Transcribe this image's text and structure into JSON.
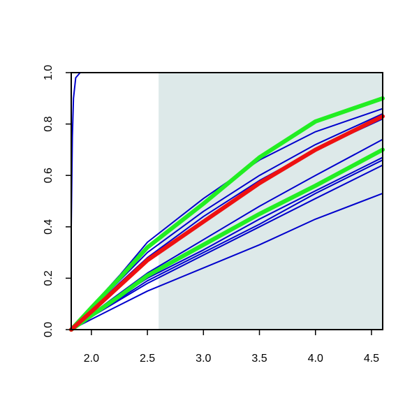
{
  "chart_data": {
    "type": "line",
    "x": [
      1.82,
      2.0,
      2.25,
      2.5,
      3.0,
      3.5,
      4.0,
      4.6
    ],
    "xlim": [
      1.82,
      4.6
    ],
    "ylim": [
      0,
      1.0
    ],
    "xticks": [
      {
        "value": 2.0,
        "label": "2.0"
      },
      {
        "value": 2.5,
        "label": "2.5"
      },
      {
        "value": 3.0,
        "label": "3.0"
      },
      {
        "value": 3.5,
        "label": "3.5"
      },
      {
        "value": 4.0,
        "label": "4.0"
      },
      {
        "value": 4.5,
        "label": "4.5"
      }
    ],
    "yticks": [
      {
        "value": 0.0,
        "label": "0.0"
      },
      {
        "value": 0.2,
        "label": "0.2"
      },
      {
        "value": 0.4,
        "label": "0.4"
      },
      {
        "value": 0.6,
        "label": "0.6"
      },
      {
        "value": 0.8,
        "label": "0.8"
      },
      {
        "value": 1.0,
        "label": "1.0"
      }
    ],
    "shade_from": 2.6,
    "shade_color": "#dde9e9",
    "series": [
      {
        "color": "#0000cc",
        "line_width": 2,
        "x": [
          1.82,
          1.83,
          1.84,
          1.86,
          1.9,
          4.6
        ],
        "values": [
          0.4,
          0.75,
          0.9,
          0.98,
          1.0,
          1.0
        ]
      },
      {
        "color": "#0000cc",
        "line_width": 2,
        "values": [
          0,
          0.09,
          0.21,
          0.34,
          0.51,
          0.66,
          0.77,
          0.86
        ]
      },
      {
        "color": "#0000cc",
        "line_width": 2,
        "values": [
          0,
          0.08,
          0.19,
          0.3,
          0.46,
          0.6,
          0.72,
          0.84
        ]
      },
      {
        "color": "#0000cc",
        "line_width": 2,
        "values": [
          0,
          0.075,
          0.18,
          0.28,
          0.44,
          0.58,
          0.7,
          0.82
        ]
      },
      {
        "color": "#0000cc",
        "line_width": 2,
        "values": [
          0,
          0.06,
          0.14,
          0.22,
          0.35,
          0.48,
          0.6,
          0.74
        ]
      },
      {
        "color": "#0000cc",
        "line_width": 2,
        "values": [
          0,
          0.055,
          0.13,
          0.2,
          0.31,
          0.43,
          0.54,
          0.67
        ]
      },
      {
        "color": "#0000cc",
        "line_width": 2,
        "values": [
          0,
          0.05,
          0.12,
          0.19,
          0.3,
          0.41,
          0.53,
          0.66
        ]
      },
      {
        "color": "#0000cc",
        "line_width": 2,
        "values": [
          0,
          0.05,
          0.115,
          0.18,
          0.29,
          0.4,
          0.51,
          0.64
        ]
      },
      {
        "color": "#0000cc",
        "line_width": 2,
        "values": [
          0,
          0.04,
          0.095,
          0.15,
          0.24,
          0.33,
          0.43,
          0.53
        ]
      },
      {
        "color": "#22ee22",
        "line_width": 6,
        "values": [
          0,
          0.085,
          0.2,
          0.32,
          0.49,
          0.67,
          0.81,
          0.9
        ]
      },
      {
        "color": "#22ee22",
        "line_width": 6,
        "values": [
          0,
          0.055,
          0.13,
          0.21,
          0.33,
          0.45,
          0.56,
          0.7
        ]
      },
      {
        "color": "#ee1111",
        "line_width": 6,
        "values": [
          0,
          0.07,
          0.17,
          0.27,
          0.42,
          0.57,
          0.7,
          0.83
        ]
      }
    ]
  }
}
